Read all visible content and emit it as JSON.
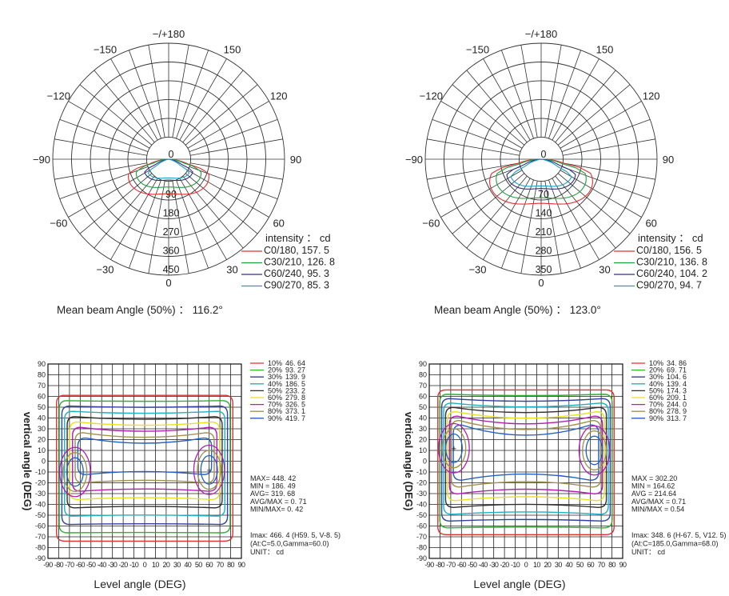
{
  "polar_charts": [
    {
      "top_angle_label": "−/+180",
      "angle_labels": [
        {
          "text": "−150",
          "deg": -150
        },
        {
          "text": "150",
          "deg": 150
        },
        {
          "text": "−120",
          "deg": -120
        },
        {
          "text": "120",
          "deg": 120
        },
        {
          "text": "−90",
          "deg": -90
        },
        {
          "text": "90",
          "deg": 90
        },
        {
          "text": "−60",
          "deg": -60
        },
        {
          "text": "60",
          "deg": 60
        },
        {
          "text": "−30",
          "deg": -30
        },
        {
          "text": "30",
          "deg": 30
        },
        {
          "text": "0",
          "deg": 0
        }
      ],
      "ring_labels": [
        "0",
        "90",
        "180",
        "270",
        "360",
        "450"
      ],
      "legend_title": "intensity ： cd",
      "legend": [
        "C0/180, 157. 5",
        "C30/210, 126. 8",
        "C60/240, 95. 3",
        "C90/270, 85. 3"
      ],
      "caption": "Mean beam Angle (50%) ： 116.2°"
    },
    {
      "top_angle_label": "−/+180",
      "angle_labels": [
        {
          "text": "−150",
          "deg": -150
        },
        {
          "text": "150",
          "deg": 150
        },
        {
          "text": "−120",
          "deg": -120
        },
        {
          "text": "120",
          "deg": 120
        },
        {
          "text": "−90",
          "deg": -90
        },
        {
          "text": "90",
          "deg": 90
        },
        {
          "text": "−60",
          "deg": -60
        },
        {
          "text": "60",
          "deg": 60
        },
        {
          "text": "−30",
          "deg": -30
        },
        {
          "text": "30",
          "deg": 30
        },
        {
          "text": "0",
          "deg": 0
        }
      ],
      "ring_labels": [
        "0",
        "70",
        "140",
        "210",
        "280",
        "350"
      ],
      "legend_title": "intensity ： cd",
      "legend": [
        "C0/180, 156. 5",
        "C30/210, 136. 8",
        "C60/240, 104. 2",
        "C90/270, 94. 7"
      ],
      "caption": "Mean beam Angle (50%) ： 123.0°"
    }
  ],
  "isolux_charts": [
    {
      "ylabel": "vertical angle (DEG)",
      "xlabel": "Level angle (DEG)",
      "legend": [
        {
          "pct": "10%",
          "val": "46. 64"
        },
        {
          "pct": "20%",
          "val": "93. 27"
        },
        {
          "pct": "30%",
          "val": "139. 9"
        },
        {
          "pct": "40%",
          "val": "186. 5"
        },
        {
          "pct": "50%",
          "val": "233. 2"
        },
        {
          "pct": "60%",
          "val": "279. 8"
        },
        {
          "pct": "70%",
          "val": "326. 5"
        },
        {
          "pct": "80%",
          "val": "373. 1"
        },
        {
          "pct": "90%",
          "val": "419. 7"
        }
      ],
      "stats": [
        "MAX= 448. 42",
        "MIN = 186. 49",
        "AVG= 319. 68",
        "AVG/MAX = 0. 71",
        "MIN/MAX= 0. 42"
      ],
      "notes": [
        "Imax: 466. 4 (H59. 5, V-8. 5)",
        "(At:C=5.0,Gamma=60.0)",
        "UNIT： cd"
      ]
    },
    {
      "ylabel": "vertical angle (DEG)",
      "xlabel": "Level angle (DEG)",
      "legend": [
        {
          "pct": "10%",
          "val": "34. 86"
        },
        {
          "pct": "20%",
          "val": "69. 71"
        },
        {
          "pct": "30%",
          "val": "104. 6"
        },
        {
          "pct": "40%",
          "val": "139. 4"
        },
        {
          "pct": "50%",
          "val": "174. 3"
        },
        {
          "pct": "60%",
          "val": "209. 1"
        },
        {
          "pct": "70%",
          "val": "244. 0"
        },
        {
          "pct": "80%",
          "val": "278. 9"
        },
        {
          "pct": "90%",
          "val": "313. 7"
        }
      ],
      "stats": [
        "MAX = 302.20",
        "MIN = 164.62",
        "AVG = 214.64",
        "AVG/MAX = 0.71",
        "MIN/MAX = 0.54"
      ],
      "notes": [
        "Imax: 348. 6 (H-67. 5, V12. 5)",
        "(At:C=185.0,Gamma=68.0)",
        "UNIT： cd"
      ]
    }
  ],
  "chart_data": [
    {
      "type": "line",
      "subtype": "polar-intensity",
      "title": "",
      "radial_range": [
        0,
        450
      ],
      "radial_ticks": [
        0,
        90,
        180,
        270,
        360,
        450
      ],
      "angle_range": [
        -180,
        180
      ],
      "legend_placement": "bottom-right",
      "series": [
        {
          "name": "C0/180, 157. 5",
          "color": "#e03030",
          "max": 157.5,
          "half_angle": 58
        },
        {
          "name": "C30/210, 126. 8",
          "color": "#20a040",
          "max": 126.8,
          "half_angle": 57
        },
        {
          "name": "C60/240, 95. 3",
          "color": "#303080",
          "max": 95.3,
          "half_angle": 50
        },
        {
          "name": "C90/270, 85. 3",
          "color": "#20a0c0",
          "max": 85.3,
          "half_angle": 44
        }
      ]
    },
    {
      "type": "line",
      "subtype": "polar-intensity",
      "title": "",
      "radial_range": [
        0,
        350
      ],
      "radial_ticks": [
        0,
        70,
        140,
        210,
        280,
        350
      ],
      "angle_range": [
        -180,
        180
      ],
      "legend_placement": "bottom-right",
      "series": [
        {
          "name": "C0/180, 156. 5",
          "color": "#e03030",
          "max": 156.5,
          "half_angle": 62
        },
        {
          "name": "C30/210, 136. 8",
          "color": "#20a040",
          "max": 136.8,
          "half_angle": 60
        },
        {
          "name": "C60/240, 104. 2",
          "color": "#303080",
          "max": 104.2,
          "half_angle": 54
        },
        {
          "name": "C90/270, 94. 7",
          "color": "#20a0c0",
          "max": 94.7,
          "half_angle": 48
        }
      ]
    },
    {
      "type": "heatmap",
      "subtype": "isolux-contour",
      "xlabel": "Level angle (DEG)",
      "ylabel": "vertical angle (DEG)",
      "xlim": [
        -90,
        90
      ],
      "ylim": [
        -90,
        90
      ],
      "x_ticks": [
        -90,
        -80,
        -70,
        -60,
        -50,
        -40,
        -30,
        -20,
        -10,
        0,
        10,
        20,
        30,
        40,
        50,
        60,
        70,
        80,
        90
      ],
      "y_ticks": [
        90,
        80,
        70,
        60,
        50,
        40,
        30,
        20,
        10,
        0,
        -10,
        -20,
        -30,
        -40,
        -50,
        -60,
        -70,
        -80,
        -90
      ],
      "grid": true,
      "legend_placement": "top-right",
      "levels": [
        {
          "pct": 10,
          "value": 46.64,
          "color": "#e03030"
        },
        {
          "pct": 20,
          "value": 93.27,
          "color": "#30b030"
        },
        {
          "pct": 30,
          "value": 139.9,
          "color": "#3040a0"
        },
        {
          "pct": 40,
          "value": 186.5,
          "color": "#20b0c0"
        },
        {
          "pct": 50,
          "value": 233.2,
          "color": "#303030"
        },
        {
          "pct": 60,
          "value": 279.8,
          "color": "#e8e020"
        },
        {
          "pct": 70,
          "value": 326.5,
          "color": "#b020b0"
        },
        {
          "pct": 80,
          "value": 373.1,
          "color": "#a09050"
        },
        {
          "pct": 90,
          "value": 419.7,
          "color": "#2060c0"
        }
      ],
      "max": 448.42,
      "min": 186.49,
      "avg": 319.68
    },
    {
      "type": "heatmap",
      "subtype": "isolux-contour",
      "xlabel": "Level angle (DEG)",
      "ylabel": "vertical angle (DEG)",
      "xlim": [
        -90,
        90
      ],
      "ylim": [
        -90,
        90
      ],
      "x_ticks": [
        -90,
        -80,
        -70,
        -60,
        -50,
        -40,
        -30,
        -20,
        -10,
        0,
        10,
        20,
        30,
        40,
        50,
        60,
        70,
        80,
        90
      ],
      "y_ticks": [
        90,
        80,
        70,
        60,
        50,
        40,
        30,
        20,
        10,
        0,
        -10,
        -20,
        -30,
        -40,
        -50,
        -60,
        -70,
        -80,
        -90
      ],
      "grid": true,
      "legend_placement": "top-right",
      "levels": [
        {
          "pct": 10,
          "value": 34.86,
          "color": "#e03030"
        },
        {
          "pct": 20,
          "value": 69.71,
          "color": "#30b030"
        },
        {
          "pct": 30,
          "value": 104.6,
          "color": "#3040a0"
        },
        {
          "pct": 40,
          "value": 139.4,
          "color": "#20b0c0"
        },
        {
          "pct": 50,
          "value": 174.3,
          "color": "#303030"
        },
        {
          "pct": 60,
          "value": 209.1,
          "color": "#e8e020"
        },
        {
          "pct": 70,
          "value": 244.0,
          "color": "#b020b0"
        },
        {
          "pct": 80,
          "value": 278.9,
          "color": "#a09050"
        },
        {
          "pct": 90,
          "value": 313.7,
          "color": "#2060c0"
        }
      ],
      "max": 302.2,
      "min": 164.62,
      "avg": 214.64
    }
  ]
}
